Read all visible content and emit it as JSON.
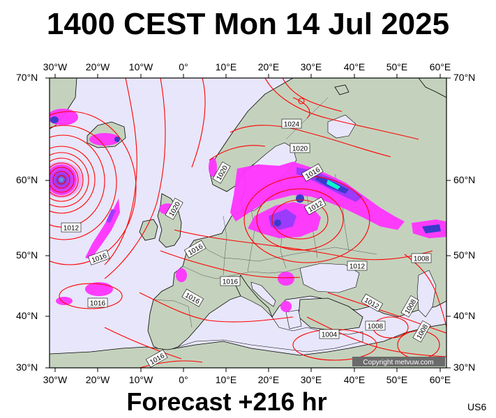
{
  "title": "1400 CEST Mon 14 Jul 2025",
  "footer": "Forecast +216 hr",
  "code": "US6",
  "copyright": "Copyright metvuw.com",
  "lon_labels": [
    "30°W",
    "20°W",
    "10°W",
    "0°",
    "10°E",
    "20°E",
    "30°E",
    "40°E",
    "50°E",
    "60°E"
  ],
  "lat_labels": [
    "70°N",
    "60°N",
    "50°N",
    "40°N",
    "30°N"
  ],
  "isobar_labels": [
    "1024",
    "1020",
    "1020",
    "1020",
    "1016",
    "1012",
    "1012",
    "1016",
    "1016",
    "1016",
    "1016",
    "1016",
    "1012",
    "1008",
    "1012",
    "1008",
    "1008",
    "1004",
    "1016",
    "1008"
  ],
  "colors": {
    "ocean": "#e8e6fa",
    "land": "#c4d2bd",
    "isobar": "#ff0000",
    "precip_light": "#ff33ff",
    "precip_mid": "#9933ff",
    "precip_heavy": "#3333cc",
    "precip_core": "#00ffcc"
  }
}
